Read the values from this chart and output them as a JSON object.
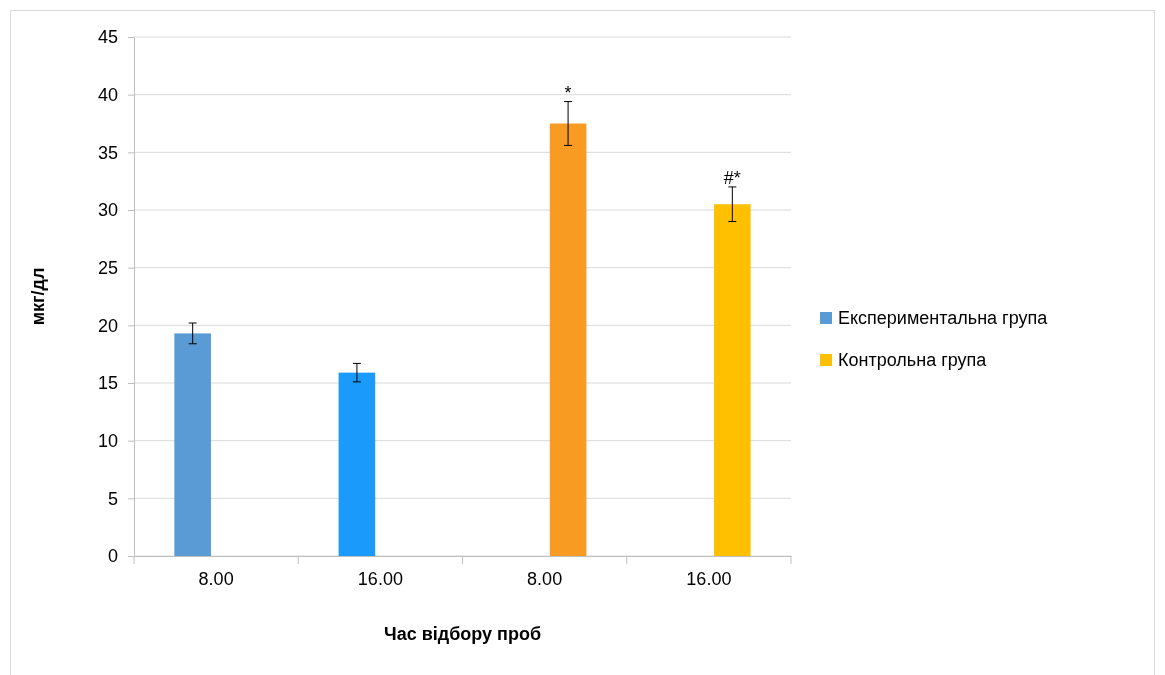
{
  "chart_data": {
    "type": "bar",
    "xlabel": "Час відбору проб",
    "ylabel": "мкг/дл",
    "categories": [
      "8.00",
      "16.00",
      "8.00",
      "16.00"
    ],
    "series": [
      {
        "name": "Експериментальна група",
        "color": "#5b9bd5",
        "colors": [
          "#5b9bd5",
          "#1a9afa",
          null,
          null
        ],
        "values": [
          19.3,
          15.9,
          null,
          null
        ],
        "errors": [
          0.9,
          0.8,
          null,
          null
        ]
      },
      {
        "name": "Контрольна група",
        "color": "#ffc000",
        "colors": [
          null,
          null,
          "#f79b22",
          "#ffc000"
        ],
        "values": [
          null,
          null,
          37.5,
          30.5
        ],
        "errors": [
          null,
          null,
          1.9,
          1.5
        ]
      }
    ],
    "ylim": [
      0,
      45
    ],
    "yticks": [
      0,
      5,
      10,
      15,
      20,
      25,
      30,
      35,
      40,
      45
    ],
    "grid": "y",
    "legend": "right",
    "annotations": [
      "*",
      "#*"
    ]
  }
}
